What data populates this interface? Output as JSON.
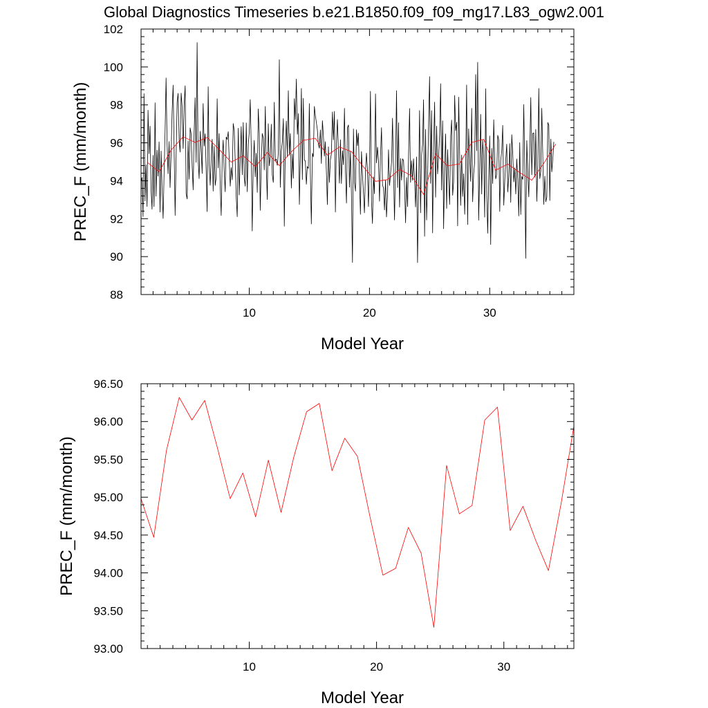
{
  "title": "Global Diagnostics Timeseries b.e21.B1850.f09_f09_mg17.L83_ogw2.001",
  "colors": {
    "monthly": "#000000",
    "annual": "#ff0000",
    "frame": "#000000"
  },
  "chart_data": [
    {
      "type": "line",
      "xlabel": "Model Year",
      "ylabel": "PREC_F (mm/month)",
      "xlim": [
        1,
        37
      ],
      "ylim": [
        88,
        102
      ],
      "xticks": [
        10,
        20,
        30
      ],
      "xtick_labels": [
        "10",
        "20",
        "30"
      ],
      "yticks": [
        88,
        90,
        92,
        94,
        96,
        98,
        100,
        102
      ],
      "ytick_labels": [
        "88",
        "90",
        "92",
        "94",
        "96",
        "98",
        "100",
        "102"
      ],
      "grid": false,
      "series": [
        {
          "color": "#000000",
          "x_start": 1.0,
          "x_step": 0.0833333,
          "values": [
            93.96,
            94.17,
            92.11,
            98.59,
            92.93,
            94.84,
            92.64,
            97.72,
            95.43,
            96.88,
            93.53,
            92.5,
            95.34,
            92.64,
            98.11,
            93.18,
            95.61,
            94.24,
            96.05,
            92.35,
            95.57,
            93.58,
            92.01,
            94.34,
            96.64,
            99.42,
            95.89,
            94.37,
            96.07,
            93.64,
            95.44,
            97.61,
            99.04,
            95.79,
            92.17,
            95.2,
            98.16,
            98.61,
            96.16,
            95.51,
            98.62,
            97.92,
            95.7,
            97.97,
            99.01,
            93.32,
            93.04,
            96.1,
            94.08,
            96.79,
            96.46,
            94.79,
            93.52,
            96.57,
            98.38,
            94.97,
            101.29,
            95.1,
            94.11,
            96.61,
            95.74,
            94.38,
            98.07,
            95.83,
            96.47,
            94.56,
            92.37,
            98.96,
            94.97,
            93.76,
            95.12,
            96.19,
            93.45,
            95.82,
            93.75,
            94.17,
            98.32,
            94.68,
            96.49,
            93.72,
            92.17,
            95.17,
            96.14,
            94.51,
            93.42,
            96.31,
            96.18,
            96.59,
            95.13,
            93.71,
            94.69,
            94.05,
            97.02,
            96.65,
            95.02,
            93.11,
            92.1,
            96.77,
            93.25,
            95.21,
            96.86,
            94.32,
            97.07,
            94.14,
            93.71,
            97.05,
            93.42,
            95.92,
            96.55,
            98.28,
            95.78,
            91.35,
            94.88,
            96.13,
            94.2,
            95.45,
            93.38,
            97.79,
            96.48,
            92.44,
            94.97,
            96.49,
            96.25,
            94.57,
            97.92,
            94.76,
            93.01,
            97.01,
            94.79,
            95.24,
            96.98,
            94.31,
            93.91,
            98.14,
            95.07,
            95.14,
            94.81,
            95.44,
            100.38,
            93.65,
            95.58,
            96.03,
            97.28,
            91.6,
            95.68,
            97.15,
            95.26,
            98.75,
            95.35,
            96.49,
            93.61,
            95.41,
            94.13,
            98.33,
            97.22,
            99.36,
            96.45,
            97.54,
            92.75,
            95.27,
            98.87,
            94.06,
            98.35,
            95.08,
            95.05,
            93.81,
            94.75,
            94.65,
            98.07,
            94.34,
            91.72,
            95.45,
            95.26,
            97.92,
            97.44,
            97.06,
            96.7,
            95.92,
            95.72,
            96.68,
            94.91,
            97.17,
            96.42,
            95.3,
            96.06,
            94.44,
            92.74,
            95.79,
            93.91,
            95.11,
            95.43,
            97.63,
            96.16,
            97.66,
            92.35,
            95.98,
            97.23,
            95.51,
            93.87,
            96.16,
            93.85,
            95.58,
            94.84,
            97.82,
            94.58,
            92.82,
            96.79,
            96.94,
            93.66,
            95.56,
            93.26,
            89.69,
            96.73,
            93.91,
            93.45,
            96.69,
            95.85,
            96.51,
            94.04,
            92.23,
            95.54,
            94.35,
            93.36,
            92.31,
            94.51,
            95.46,
            94.55,
            92.64,
            95.01,
            98.72,
            92.9,
            91.74,
            94.2,
            93.31,
            98.58,
            94.94,
            95.77,
            95.04,
            92.92,
            95.33,
            96.8,
            93.79,
            93.61,
            92.46,
            94.04,
            92.09,
            93.22,
            95.63,
            93.75,
            94.34,
            95.0,
            97.3,
            94.36,
            91.93,
            94.89,
            98.75,
            93.64,
            97.06,
            92.61,
            95.18,
            94.03,
            95.16,
            95.06,
            93.69,
            91.78,
            94.17,
            92.63,
            95.38,
            97.81,
            93.91,
            95.06,
            94.02,
            95.16,
            94.05,
            92.62,
            95.26,
            89.68,
            93.72,
            97.7,
            92.31,
            95.35,
            95.96,
            98.27,
            91.07,
            96.71,
            91.93,
            94.05,
            96.98,
            99.49,
            93.86,
            97.7,
            91.25,
            95.72,
            98.15,
            93.13,
            96.88,
            94.36,
            95.28,
            96.41,
            99.12,
            93.51,
            97.16,
            91.47,
            94.64,
            96.47,
            92.54,
            95.64,
            93.99,
            92.75,
            96.34,
            97.2,
            93.23,
            93.95,
            98.5,
            96.64,
            97.09,
            91.62,
            98.41,
            95.4,
            92.7,
            95.36,
            93.17,
            94.37,
            92.23,
            94.95,
            99.05,
            91.69,
            96.74,
            95.17,
            93.97,
            97.82,
            92.89,
            94.37,
            94.97,
            99.6,
            95.58,
            100.25,
            91.92,
            94.47,
            97.5,
            93.3,
            96.14,
            95.18,
            92.08,
            98.85,
            93.44,
            91.23,
            94.05,
            96.36,
            90.64,
            95.71,
            93.85,
            97.22,
            95.04,
            94.1,
            94.34,
            96.4,
            96.17,
            92.38,
            95.07,
            95.59,
            96.92,
            92.71,
            93.91,
            95.11,
            95.93,
            93.41,
            94.22,
            95.96,
            92.86,
            96.43,
            95.41,
            93.94,
            94.68,
            93.3,
            95.15,
            94.02,
            92.14,
            96.01,
            92.22,
            94.23,
            94.07,
            98.02,
            94.65,
            89.91,
            96.12,
            94.51,
            93.15,
            95.53,
            98.39,
            94.32,
            96.51,
            96.52,
            94.19,
            96.71,
            92.91,
            94.74,
            98.87,
            94.11,
            94.49,
            97.82,
            95.22,
            92.75,
            94.25,
            92.89,
            93.14,
            97.07,
            96.93,
            92.96,
            96.2,
            94.47,
            95.23,
            96.05
          ]
        },
        {
          "color": "#ff0000",
          "x": [
            1.5,
            2.5,
            3.5,
            4.5,
            5.5,
            6.5,
            7.5,
            8.5,
            9.5,
            10.5,
            11.5,
            12.5,
            13.5,
            14.5,
            15.5,
            16.5,
            17.5,
            18.5,
            19.5,
            20.5,
            21.5,
            22.5,
            23.5,
            24.5,
            25.5,
            26.5,
            27.5,
            28.5,
            29.5,
            30.5,
            31.5,
            32.5,
            33.5,
            34.5,
            35.5
          ],
          "values": [
            94.98,
            94.47,
            95.62,
            96.32,
            96.02,
            96.28,
            95.65,
            94.98,
            95.32,
            94.74,
            95.49,
            94.8,
            95.53,
            96.13,
            96.24,
            95.35,
            95.78,
            95.54,
            94.73,
            93.97,
            94.06,
            94.6,
            94.26,
            93.28,
            95.42,
            94.78,
            94.89,
            96.02,
            96.19,
            94.56,
            94.88,
            94.43,
            94.03,
            94.92,
            95.94
          ]
        }
      ]
    },
    {
      "type": "line",
      "xlabel": "Model Year",
      "ylabel": "PREC_F (mm/month)",
      "xlim": [
        1.5,
        35.5
      ],
      "ylim": [
        93.0,
        96.5
      ],
      "xticks": [
        10,
        20,
        30
      ],
      "xtick_labels": [
        "10",
        "20",
        "30"
      ],
      "yticks": [
        93.0,
        93.5,
        94.0,
        94.5,
        95.0,
        95.5,
        96.0,
        96.5
      ],
      "ytick_labels": [
        "93.00",
        "93.50",
        "94.00",
        "94.50",
        "95.00",
        "95.50",
        "96.00",
        "96.50"
      ],
      "grid": false,
      "series": [
        {
          "color": "#ff0000",
          "x": [
            1.5,
            2.5,
            3.5,
            4.5,
            5.5,
            6.5,
            7.5,
            8.5,
            9.5,
            10.5,
            11.5,
            12.5,
            13.5,
            14.5,
            15.5,
            16.5,
            17.5,
            18.5,
            19.5,
            20.5,
            21.5,
            22.5,
            23.5,
            24.5,
            25.5,
            26.5,
            27.5,
            28.5,
            29.5,
            30.5,
            31.5,
            32.5,
            33.5,
            34.5,
            35.5
          ],
          "values": [
            94.98,
            94.47,
            95.62,
            96.32,
            96.02,
            96.28,
            95.65,
            94.98,
            95.32,
            94.74,
            95.49,
            94.8,
            95.53,
            96.13,
            96.24,
            95.35,
            95.78,
            95.54,
            94.73,
            93.97,
            94.06,
            94.6,
            94.26,
            93.28,
            95.42,
            94.78,
            94.89,
            96.02,
            96.19,
            94.56,
            94.88,
            94.43,
            94.03,
            94.92,
            95.94
          ]
        }
      ]
    }
  ]
}
